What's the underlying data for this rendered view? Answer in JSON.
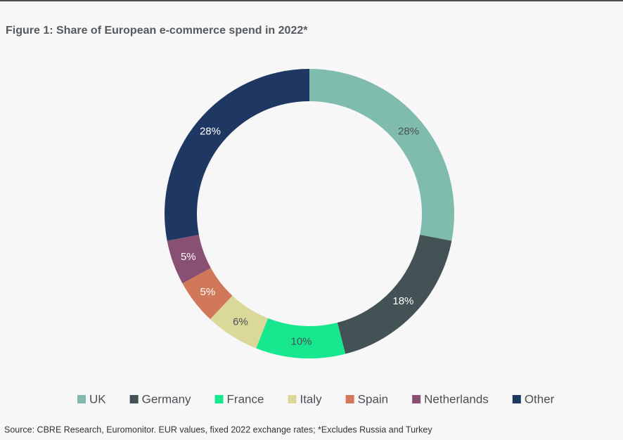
{
  "chart_data": {
    "type": "donut",
    "title": "Figure 1:  Share of European e-commerce spend in 2022*",
    "categories": [
      "UK",
      "Germany",
      "France",
      "Italy",
      "Spain",
      "Netherlands",
      "Other"
    ],
    "values": [
      28,
      18,
      10,
      6,
      5,
      5,
      28
    ],
    "value_labels": [
      "28%",
      "18%",
      "10%",
      "6%",
      "5%",
      "5%",
      "28%"
    ],
    "colors": [
      "#80bcad",
      "#435254",
      "#17e88f",
      "#dbd99a",
      "#d2785a",
      "#885073",
      "#1f3763"
    ],
    "legend": "bottom",
    "source": "Source: CBRE Research, Euromonitor. EUR values, fixed 2022 exchange rates; *Excludes Russia and Turkey"
  }
}
